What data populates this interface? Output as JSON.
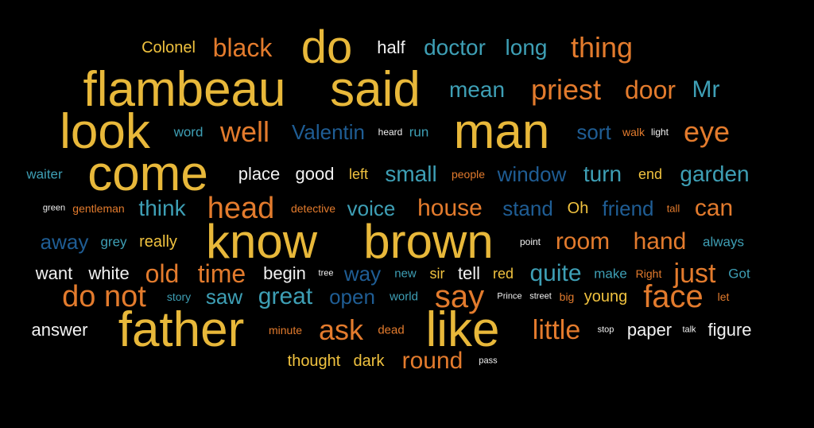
{
  "palette": {
    "gold": "#e8b83a",
    "orange": "#e37b2d",
    "teal": "#3e9fb5",
    "blue": "#1f5d94",
    "white": "#f2f2f2",
    "yellow": "#f0c23f",
    "background": "#000000"
  },
  "words": [
    {
      "text": "Colonel",
      "color": "yellow"
    },
    {
      "text": "black",
      "color": "orange"
    },
    {
      "text": "do",
      "color": "gold"
    },
    {
      "text": "half",
      "color": "white"
    },
    {
      "text": "doctor",
      "color": "teal"
    },
    {
      "text": "long",
      "color": "teal"
    },
    {
      "text": "thing",
      "color": "orange"
    },
    {
      "text": "flambeau",
      "color": "gold"
    },
    {
      "text": "said",
      "color": "gold"
    },
    {
      "text": "mean",
      "color": "teal"
    },
    {
      "text": "priest",
      "color": "orange"
    },
    {
      "text": "door",
      "color": "orange"
    },
    {
      "text": "Mr",
      "color": "teal"
    },
    {
      "text": "look",
      "color": "gold"
    },
    {
      "text": "word",
      "color": "teal"
    },
    {
      "text": "well",
      "color": "orange"
    },
    {
      "text": "Valentin",
      "color": "blue"
    },
    {
      "text": "heard",
      "color": "white"
    },
    {
      "text": "run",
      "color": "teal"
    },
    {
      "text": "man",
      "color": "gold"
    },
    {
      "text": "sort",
      "color": "blue"
    },
    {
      "text": "walk",
      "color": "orange"
    },
    {
      "text": "light",
      "color": "white"
    },
    {
      "text": "eye",
      "color": "orange"
    },
    {
      "text": "waiter",
      "color": "teal"
    },
    {
      "text": "come",
      "color": "gold"
    },
    {
      "text": "place",
      "color": "white"
    },
    {
      "text": "good",
      "color": "white"
    },
    {
      "text": "left",
      "color": "yellow"
    },
    {
      "text": "small",
      "color": "teal"
    },
    {
      "text": "people",
      "color": "orange"
    },
    {
      "text": "window",
      "color": "blue"
    },
    {
      "text": "turn",
      "color": "teal"
    },
    {
      "text": "end",
      "color": "yellow"
    },
    {
      "text": "garden",
      "color": "teal"
    },
    {
      "text": "green",
      "color": "white"
    },
    {
      "text": "gentleman",
      "color": "orange"
    },
    {
      "text": "think",
      "color": "teal"
    },
    {
      "text": "head",
      "color": "orange"
    },
    {
      "text": "detective",
      "color": "orange"
    },
    {
      "text": "voice",
      "color": "teal"
    },
    {
      "text": "house",
      "color": "orange"
    },
    {
      "text": "stand",
      "color": "blue"
    },
    {
      "text": "Oh",
      "color": "yellow"
    },
    {
      "text": "friend",
      "color": "blue"
    },
    {
      "text": "tall",
      "color": "orange"
    },
    {
      "text": "can",
      "color": "orange"
    },
    {
      "text": "away",
      "color": "blue"
    },
    {
      "text": "grey",
      "color": "teal"
    },
    {
      "text": "really",
      "color": "yellow"
    },
    {
      "text": "know",
      "color": "gold"
    },
    {
      "text": "brown",
      "color": "gold"
    },
    {
      "text": "point",
      "color": "white"
    },
    {
      "text": "room",
      "color": "orange"
    },
    {
      "text": "hand",
      "color": "orange"
    },
    {
      "text": "always",
      "color": "teal"
    },
    {
      "text": "want",
      "color": "white"
    },
    {
      "text": "white",
      "color": "white"
    },
    {
      "text": "old",
      "color": "orange"
    },
    {
      "text": "time",
      "color": "orange"
    },
    {
      "text": "begin",
      "color": "white"
    },
    {
      "text": "tree",
      "color": "white"
    },
    {
      "text": "way",
      "color": "blue"
    },
    {
      "text": "new",
      "color": "teal"
    },
    {
      "text": "sir",
      "color": "yellow"
    },
    {
      "text": "tell",
      "color": "white"
    },
    {
      "text": "red",
      "color": "yellow"
    },
    {
      "text": "quite",
      "color": "teal"
    },
    {
      "text": "make",
      "color": "teal"
    },
    {
      "text": "Right",
      "color": "orange"
    },
    {
      "text": "just",
      "color": "orange"
    },
    {
      "text": "Got",
      "color": "teal"
    },
    {
      "text": "do not",
      "color": "orange"
    },
    {
      "text": "story",
      "color": "teal"
    },
    {
      "text": "saw",
      "color": "teal"
    },
    {
      "text": "great",
      "color": "teal"
    },
    {
      "text": "open",
      "color": "blue"
    },
    {
      "text": "world",
      "color": "teal"
    },
    {
      "text": "say",
      "color": "orange"
    },
    {
      "text": "Prince",
      "color": "white"
    },
    {
      "text": "street",
      "color": "white"
    },
    {
      "text": "big",
      "color": "orange"
    },
    {
      "text": "young",
      "color": "yellow"
    },
    {
      "text": "face",
      "color": "orange"
    },
    {
      "text": "let",
      "color": "orange"
    },
    {
      "text": "answer",
      "color": "white"
    },
    {
      "text": "father",
      "color": "gold"
    },
    {
      "text": "minute",
      "color": "orange"
    },
    {
      "text": "ask",
      "color": "orange"
    },
    {
      "text": "dead",
      "color": "orange"
    },
    {
      "text": "like",
      "color": "gold"
    },
    {
      "text": "little",
      "color": "orange"
    },
    {
      "text": "stop",
      "color": "white"
    },
    {
      "text": "paper",
      "color": "white"
    },
    {
      "text": "talk",
      "color": "white"
    },
    {
      "text": "figure",
      "color": "white"
    },
    {
      "text": "thought",
      "color": "yellow"
    },
    {
      "text": "dark",
      "color": "yellow"
    },
    {
      "text": "round",
      "color": "orange"
    },
    {
      "text": "pass",
      "color": "white"
    }
  ]
}
